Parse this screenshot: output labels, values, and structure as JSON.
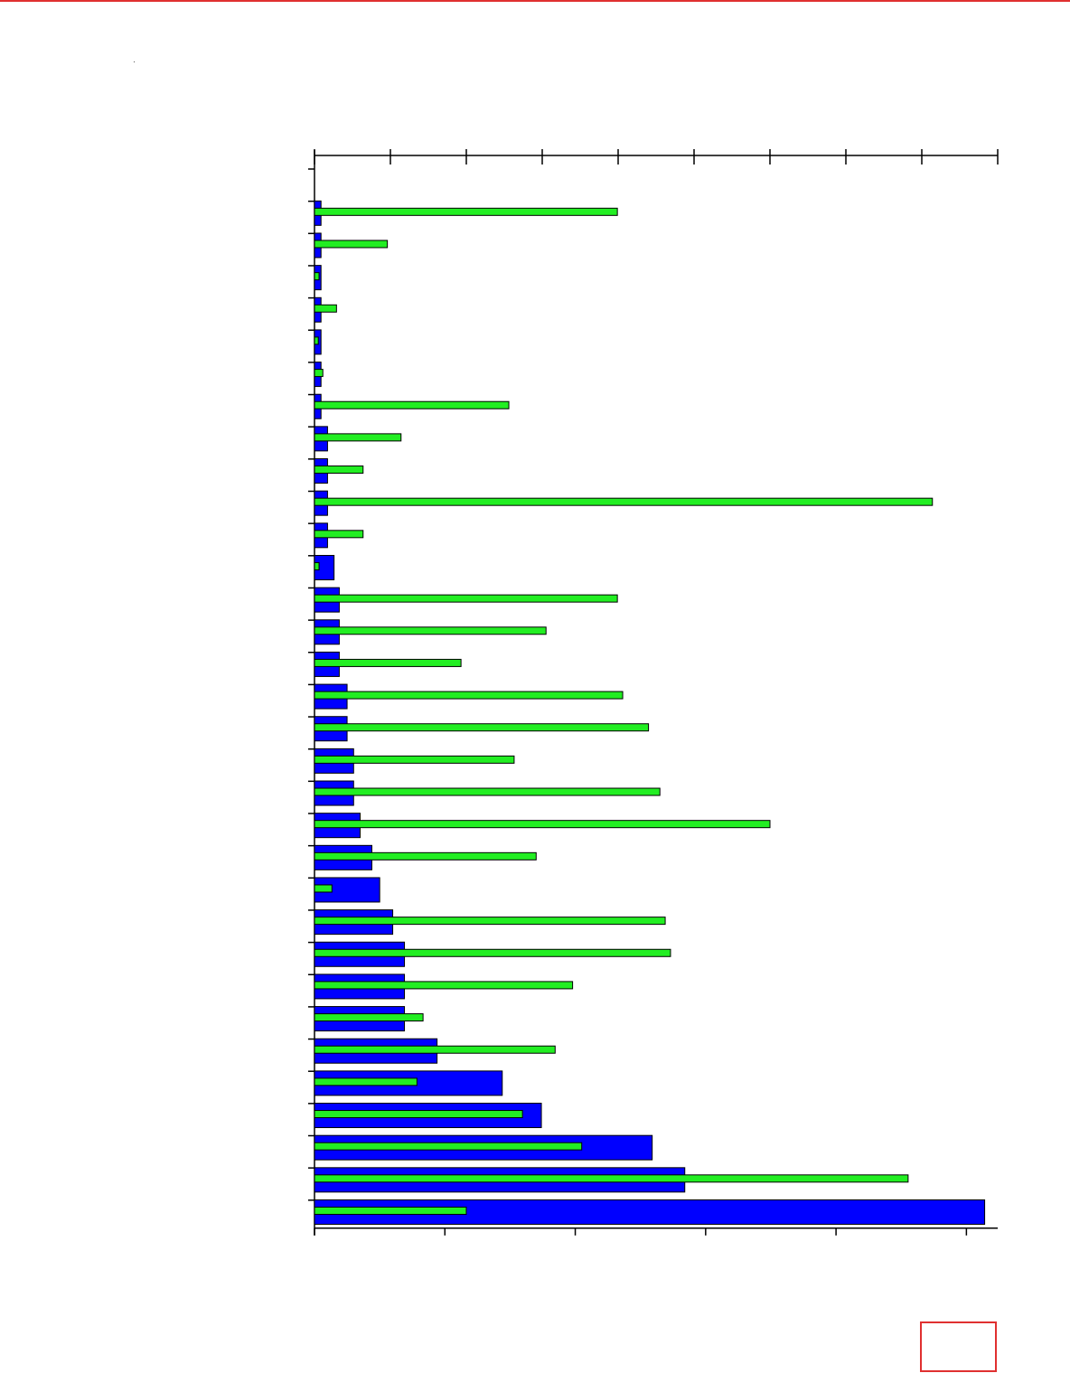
{
  "chart_data": {
    "type": "bar",
    "orientation": "horizontal",
    "categories": [
      null,
      null,
      null,
      null,
      null,
      null,
      null,
      null,
      null,
      null,
      null,
      null,
      null,
      null,
      null,
      null,
      null,
      null,
      null,
      null,
      null,
      null,
      null,
      null,
      null,
      null,
      null,
      null,
      null,
      null,
      null,
      null
    ],
    "series": [
      {
        "color": "#0000ff",
        "axis": "x",
        "values": [
          0.05,
          0.05,
          0.05,
          0.05,
          0.05,
          0.05,
          0.05,
          0.1,
          0.1,
          0.1,
          0.1,
          0.15,
          0.19,
          0.19,
          0.19,
          0.25,
          0.25,
          0.3,
          0.3,
          0.35,
          0.44,
          0.5,
          0.6,
          0.69,
          0.69,
          0.69,
          0.94,
          1.44,
          1.74,
          2.59,
          2.84,
          5.14
        ]
      },
      {
        "color": "#22ee22",
        "axis": "x2",
        "values": [
          3.99,
          0.96,
          0.06,
          0.29,
          0.05,
          0.11,
          2.56,
          1.14,
          0.64,
          8.14,
          0.64,
          0.06,
          3.99,
          3.05,
          1.93,
          4.06,
          4.4,
          2.63,
          4.55,
          6.0,
          2.92,
          0.23,
          4.62,
          4.69,
          3.4,
          1.43,
          3.17,
          1.35,
          2.74,
          3.52,
          7.82,
          2.0
        ]
      }
    ],
    "xlim": [
      0,
      5.24
    ],
    "xticks": [
      0,
      1,
      2,
      3,
      4,
      5
    ],
    "x2lim": [
      0,
      9
    ],
    "x2ticks": [
      0,
      1,
      2,
      3,
      4,
      5,
      6,
      7,
      8,
      9
    ]
  }
}
